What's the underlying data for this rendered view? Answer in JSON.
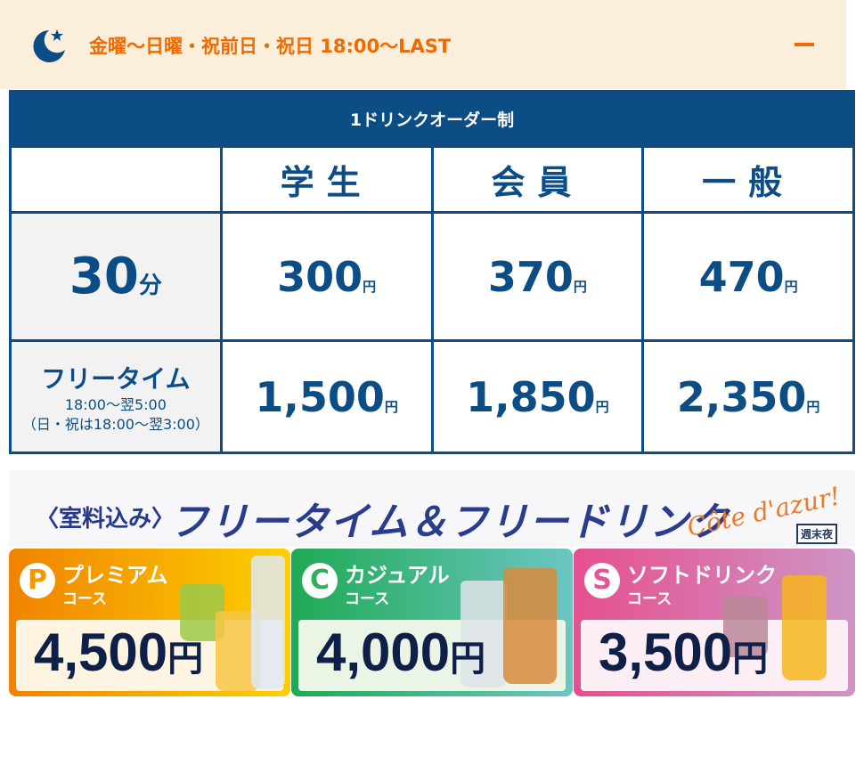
{
  "accordion": {
    "title": "金曜〜日曜・祝前日・祝日 18:00〜LAST",
    "icon": "moon-star-icon",
    "toggle_icon": "minus-icon",
    "accent": "#f06a00"
  },
  "table": {
    "caption": "1ドリンクオーダー制",
    "headers": [
      "",
      "学生",
      "会員",
      "一般"
    ],
    "rows": [
      {
        "label": "30",
        "label_unit": "分",
        "prices": [
          "300",
          "370",
          "470"
        ],
        "unit": "円"
      },
      {
        "label": "フリータイム",
        "sub1": "18:00〜翌5:00",
        "sub2": "（日・祝は18:00〜翌3:00）",
        "prices": [
          "1,500",
          "1,850",
          "2,350"
        ],
        "unit": "円"
      }
    ],
    "color": "#0d4d85"
  },
  "banner": {
    "prefix": "〈室料込み〉",
    "title": "フリータイム＆フリードリンク",
    "script": "Côte d'azur!",
    "tag": "週末夜"
  },
  "courses": [
    {
      "badge": "P",
      "name": "プレミアム",
      "course": "コース",
      "price": "4,500",
      "unit": "円",
      "color": "#f39800"
    },
    {
      "badge": "C",
      "name": "カジュアル",
      "course": "コース",
      "price": "4,000",
      "unit": "円",
      "color": "#2fae5c"
    },
    {
      "badge": "S",
      "name": "ソフトドリンク",
      "course": "コース",
      "price": "3,500",
      "unit": "円",
      "color": "#e2559a"
    }
  ]
}
